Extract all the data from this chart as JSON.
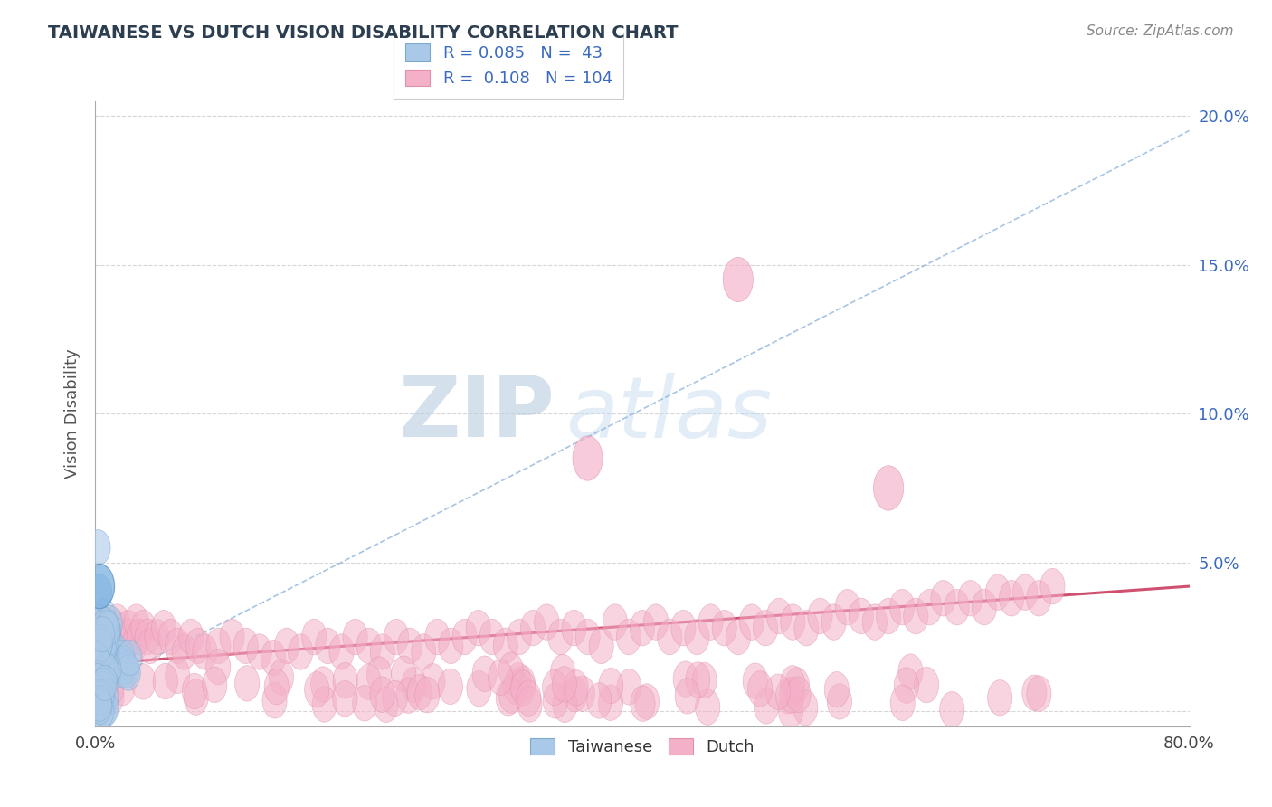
{
  "title": "TAIWANESE VS DUTCH VISION DISABILITY CORRELATION CHART",
  "source": "Source: ZipAtlas.com",
  "ylabel": "Vision Disability",
  "xlim": [
    0.0,
    0.8
  ],
  "ylim": [
    -0.005,
    0.205
  ],
  "yticks": [
    0.0,
    0.05,
    0.1,
    0.15,
    0.2
  ],
  "ytick_labels": [
    "",
    "5.0%",
    "10.0%",
    "15.0%",
    "20.0%"
  ],
  "taiwanese_R": 0.085,
  "taiwanese_N": 43,
  "dutch_R": 0.108,
  "dutch_N": 104,
  "taiwanese_color": "#aac8e8",
  "dutch_color": "#f4b0c8",
  "trend_taiwanese_color": "#8ab0d8",
  "trend_dutch_color": "#d05070",
  "background_color": "#ffffff",
  "grid_color": "#cccccc",
  "title_color": "#2c3e50",
  "watermark_color_zip": "#b0c8e0",
  "watermark_color_atlas": "#c0d8f0",
  "legend_color": "#3a6abf",
  "taiwanese_x": [
    0.002,
    0.003,
    0.003,
    0.004,
    0.004,
    0.004,
    0.005,
    0.005,
    0.005,
    0.006,
    0.006,
    0.006,
    0.007,
    0.007,
    0.007,
    0.008,
    0.008,
    0.008,
    0.009,
    0.009,
    0.01,
    0.01,
    0.01,
    0.011,
    0.011,
    0.012,
    0.012,
    0.013,
    0.013,
    0.014,
    0.015,
    0.016,
    0.017,
    0.018,
    0.019,
    0.02,
    0.021,
    0.022,
    0.023,
    0.024,
    0.025,
    0.003,
    0.002
  ],
  "taiwanese_y": [
    0.022,
    0.03,
    0.018,
    0.025,
    0.02,
    0.015,
    0.028,
    0.022,
    0.018,
    0.032,
    0.025,
    0.02,
    0.028,
    0.022,
    0.018,
    0.025,
    0.02,
    0.016,
    0.022,
    0.018,
    0.024,
    0.02,
    0.016,
    0.022,
    0.018,
    0.02,
    0.016,
    0.018,
    0.015,
    0.016,
    0.02,
    0.018,
    0.016,
    0.015,
    0.014,
    0.018,
    0.016,
    0.015,
    0.014,
    0.013,
    0.018,
    0.04,
    0.055
  ],
  "dutch_x": [
    0.002,
    0.003,
    0.004,
    0.005,
    0.006,
    0.007,
    0.008,
    0.009,
    0.01,
    0.011,
    0.012,
    0.013,
    0.014,
    0.015,
    0.016,
    0.017,
    0.018,
    0.019,
    0.02,
    0.022,
    0.024,
    0.026,
    0.028,
    0.03,
    0.032,
    0.035,
    0.038,
    0.04,
    0.045,
    0.05,
    0.055,
    0.06,
    0.065,
    0.07,
    0.075,
    0.08,
    0.09,
    0.1,
    0.11,
    0.12,
    0.13,
    0.14,
    0.15,
    0.16,
    0.17,
    0.18,
    0.19,
    0.2,
    0.21,
    0.22,
    0.23,
    0.24,
    0.25,
    0.26,
    0.27,
    0.28,
    0.29,
    0.3,
    0.31,
    0.32,
    0.33,
    0.34,
    0.35,
    0.36,
    0.37,
    0.38,
    0.39,
    0.4,
    0.41,
    0.42,
    0.43,
    0.44,
    0.45,
    0.46,
    0.47,
    0.48,
    0.49,
    0.5,
    0.51,
    0.52,
    0.53,
    0.54,
    0.55,
    0.56,
    0.57,
    0.58,
    0.59,
    0.6,
    0.61,
    0.62,
    0.63,
    0.64,
    0.65,
    0.66,
    0.67,
    0.68,
    0.69,
    0.7,
    0.005,
    0.008,
    0.012,
    0.02,
    0.035,
    0.06
  ],
  "dutch_y": [
    0.02,
    0.022,
    0.03,
    0.025,
    0.028,
    0.022,
    0.025,
    0.02,
    0.022,
    0.018,
    0.02,
    0.025,
    0.022,
    0.028,
    0.03,
    0.025,
    0.022,
    0.02,
    0.025,
    0.022,
    0.028,
    0.025,
    0.022,
    0.03,
    0.025,
    0.028,
    0.025,
    0.022,
    0.025,
    0.028,
    0.025,
    0.022,
    0.02,
    0.025,
    0.022,
    0.02,
    0.022,
    0.025,
    0.022,
    0.02,
    0.018,
    0.022,
    0.02,
    0.025,
    0.022,
    0.02,
    0.025,
    0.022,
    0.02,
    0.025,
    0.022,
    0.02,
    0.025,
    0.022,
    0.025,
    0.028,
    0.025,
    0.022,
    0.025,
    0.028,
    0.03,
    0.025,
    0.028,
    0.025,
    0.022,
    0.03,
    0.025,
    0.028,
    0.03,
    0.025,
    0.028,
    0.025,
    0.03,
    0.028,
    0.025,
    0.03,
    0.028,
    0.032,
    0.03,
    0.028,
    0.032,
    0.03,
    0.035,
    0.032,
    0.03,
    0.032,
    0.035,
    0.032,
    0.035,
    0.038,
    0.035,
    0.038,
    0.035,
    0.04,
    0.038,
    0.04,
    0.038,
    0.042,
    0.01,
    0.008,
    0.005,
    0.008,
    0.01,
    0.012
  ],
  "tw_trend_x0": 0.0,
  "tw_trend_y0": 0.008,
  "tw_trend_x1": 0.8,
  "tw_trend_y1": 0.195,
  "dutch_trend_x0": 0.0,
  "dutch_trend_y0": 0.016,
  "dutch_trend_x1": 0.8,
  "dutch_trend_y1": 0.042
}
